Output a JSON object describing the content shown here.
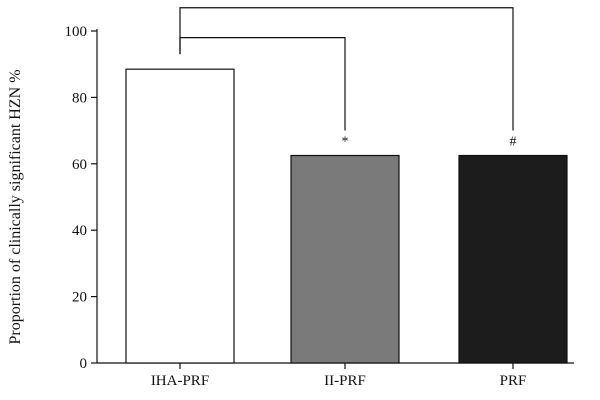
{
  "chart_data": {
    "type": "bar",
    "title": "",
    "xlabel": "",
    "ylabel": "Proportion of clinically significant HZN %",
    "ylim": [
      0,
      100
    ],
    "yticks": [
      0,
      20,
      40,
      60,
      80,
      100
    ],
    "categories": [
      "IHA-PRF",
      "II-PRF",
      "PRF"
    ],
    "values": [
      88.5,
      62.5,
      62.5
    ],
    "bar_colors": [
      "#ffffff",
      "#7a7a7a",
      "#1c1c1c"
    ],
    "significance_marks": [
      "",
      "*",
      "#"
    ],
    "comparisons": [
      {
        "from": "IHA-PRF",
        "to": "II-PRF",
        "y": 98
      },
      {
        "from": "IHA-PRF",
        "to": "PRF",
        "y": 107
      }
    ],
    "grid": false,
    "legend": "none"
  }
}
